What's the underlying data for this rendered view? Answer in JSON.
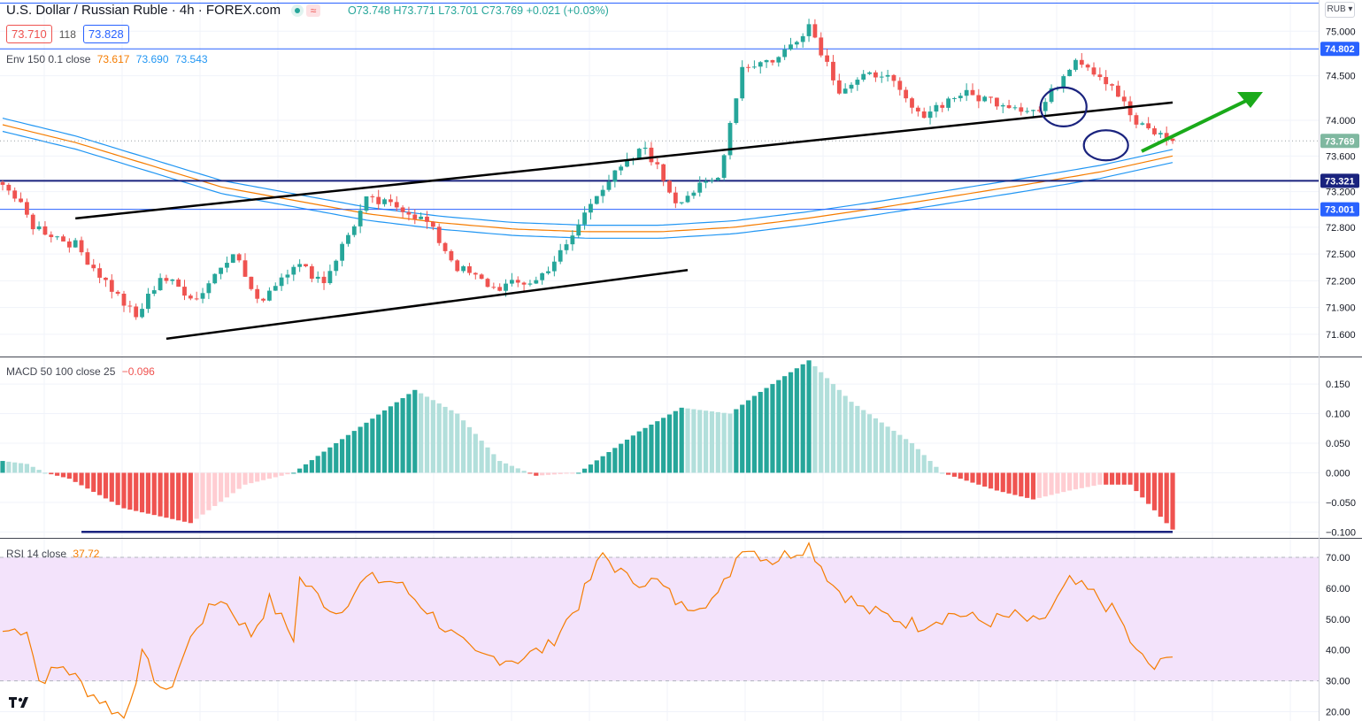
{
  "header": {
    "symbol": "U.S. Dollar / Russian Ruble · 4h · FOREX.com",
    "ohlc": {
      "o": "O73.748",
      "h": "H73.771",
      "l": "L73.701",
      "c": "C73.769",
      "chg": "+0.021 (+0.03%)"
    },
    "bid": "73.710",
    "spread": "118",
    "ask": "73.828",
    "currency": "RUB",
    "status_colors": {
      "live": "#26a69a",
      "wave": "#ef5350"
    }
  },
  "indicators": {
    "env": {
      "label": "Env 150 0.1 close",
      "basis": "73.617",
      "upper": "73.690",
      "lower": "73.543",
      "colors": {
        "basis": "#f57c00",
        "band": "#2196f3"
      }
    },
    "macd": {
      "label": "MACD 50 100 close 25",
      "value": "−0.096"
    },
    "rsi": {
      "label": "RSI 14 close",
      "value": "37.72"
    }
  },
  "chart_data": [
    {
      "type": "candlestick",
      "name": "price",
      "y_ticks": [
        "75.000",
        "74.500",
        "74.000",
        "73.600",
        "73.200",
        "72.800",
        "72.500",
        "72.200",
        "71.900",
        "71.600"
      ],
      "ylim": [
        71.35,
        75.35
      ],
      "price_badges": [
        {
          "value": "74.802",
          "color": "#2962ff",
          "style": "hline"
        },
        {
          "value": "73.769",
          "color": "#7fb8a0",
          "style": "last"
        },
        {
          "value": "73.321",
          "color": "#1a237e",
          "style": "hline"
        },
        {
          "value": "73.001",
          "color": "#2962ff",
          "style": "hline"
        }
      ],
      "anchors": [
        {
          "i": 0,
          "p": 73.33
        },
        {
          "i": 5,
          "p": 72.82
        },
        {
          "i": 12,
          "p": 72.6
        },
        {
          "i": 22,
          "p": 71.78
        },
        {
          "i": 26,
          "p": 72.25
        },
        {
          "i": 32,
          "p": 72.0
        },
        {
          "i": 38,
          "p": 72.55
        },
        {
          "i": 42,
          "p": 71.95
        },
        {
          "i": 48,
          "p": 72.4
        },
        {
          "i": 53,
          "p": 72.2
        },
        {
          "i": 60,
          "p": 73.1
        },
        {
          "i": 66,
          "p": 73.02
        },
        {
          "i": 70,
          "p": 72.85
        },
        {
          "i": 75,
          "p": 72.35
        },
        {
          "i": 81,
          "p": 72.12
        },
        {
          "i": 88,
          "p": 72.2
        },
        {
          "i": 93,
          "p": 72.58
        },
        {
          "i": 98,
          "p": 73.2
        },
        {
          "i": 106,
          "p": 73.7
        },
        {
          "i": 111,
          "p": 73.1
        },
        {
          "i": 118,
          "p": 73.35
        },
        {
          "i": 122,
          "p": 74.6
        },
        {
          "i": 128,
          "p": 74.7
        },
        {
          "i": 133,
          "p": 75.08
        },
        {
          "i": 138,
          "p": 74.35
        },
        {
          "i": 145,
          "p": 74.55
        },
        {
          "i": 151,
          "p": 74.05
        },
        {
          "i": 158,
          "p": 74.3
        },
        {
          "i": 165,
          "p": 74.2
        },
        {
          "i": 171,
          "p": 74.1
        },
        {
          "i": 177,
          "p": 74.72
        },
        {
          "i": 183,
          "p": 74.4
        },
        {
          "i": 187,
          "p": 73.95
        },
        {
          "i": 193,
          "p": 73.769
        }
      ],
      "envelope": {
        "basis": [
          73.95,
          73.75,
          73.5,
          73.25,
          73.1,
          72.95,
          72.85,
          72.78,
          72.75,
          72.75,
          72.8,
          72.9,
          73.02,
          73.15,
          73.28,
          73.42,
          73.6
        ],
        "band_pct": 0.1
      },
      "trendlines": [
        {
          "from": [
            12,
            72.9
          ],
          "to": [
            193,
            74.2
          ]
        },
        {
          "from": [
            27,
            71.55
          ],
          "to": [
            113,
            72.32
          ]
        }
      ]
    },
    {
      "type": "bar",
      "name": "MACD histogram",
      "y_ticks": [
        "0.150",
        "0.100",
        "0.050",
        "0.000",
        "−0.050",
        "−0.100"
      ],
      "ylim": [
        -0.11,
        0.195
      ],
      "anchors": [
        {
          "i": 0,
          "v": 0.02
        },
        {
          "i": 4,
          "v": 0.015
        },
        {
          "i": 7,
          "v": 0.0
        },
        {
          "i": 11,
          "v": -0.01
        },
        {
          "i": 20,
          "v": -0.06
        },
        {
          "i": 31,
          "v": -0.085
        },
        {
          "i": 40,
          "v": -0.02
        },
        {
          "i": 48,
          "v": 0.0
        },
        {
          "i": 55,
          "v": 0.05
        },
        {
          "i": 68,
          "v": 0.14
        },
        {
          "i": 75,
          "v": 0.1
        },
        {
          "i": 82,
          "v": 0.02
        },
        {
          "i": 88,
          "v": -0.005
        },
        {
          "i": 95,
          "v": 0.0
        },
        {
          "i": 105,
          "v": 0.07
        },
        {
          "i": 112,
          "v": 0.11
        },
        {
          "i": 120,
          "v": 0.1
        },
        {
          "i": 124,
          "v": 0.13
        },
        {
          "i": 133,
          "v": 0.19
        },
        {
          "i": 140,
          "v": 0.12
        },
        {
          "i": 150,
          "v": 0.05
        },
        {
          "i": 155,
          "v": 0.0
        },
        {
          "i": 164,
          "v": -0.03
        },
        {
          "i": 170,
          "v": -0.045
        },
        {
          "i": 176,
          "v": -0.03
        },
        {
          "i": 181,
          "v": -0.02
        },
        {
          "i": 186,
          "v": -0.02
        },
        {
          "i": 193,
          "v": -0.096
        }
      ],
      "reference_line": {
        "value": -0.1,
        "from": 13,
        "to": 193,
        "color": "#1a237e"
      }
    },
    {
      "type": "line",
      "name": "RSI",
      "y_ticks": [
        "70.00",
        "60.00",
        "50.00",
        "40.00",
        "30.00",
        "20.00"
      ],
      "ylim": [
        17,
        76
      ],
      "band": [
        30,
        70
      ],
      "anchors": [
        {
          "i": 0,
          "v": 46
        },
        {
          "i": 4,
          "v": 47
        },
        {
          "i": 6,
          "v": 30
        },
        {
          "i": 10,
          "v": 35
        },
        {
          "i": 14,
          "v": 27
        },
        {
          "i": 20,
          "v": 18
        },
        {
          "i": 23,
          "v": 38
        },
        {
          "i": 27,
          "v": 25
        },
        {
          "i": 32,
          "v": 48
        },
        {
          "i": 36,
          "v": 57
        },
        {
          "i": 41,
          "v": 45
        },
        {
          "i": 44,
          "v": 56
        },
        {
          "i": 48,
          "v": 44
        },
        {
          "i": 49,
          "v": 63
        },
        {
          "i": 55,
          "v": 52
        },
        {
          "i": 60,
          "v": 63
        },
        {
          "i": 65,
          "v": 62
        },
        {
          "i": 70,
          "v": 53
        },
        {
          "i": 73,
          "v": 47
        },
        {
          "i": 78,
          "v": 38
        },
        {
          "i": 85,
          "v": 37
        },
        {
          "i": 90,
          "v": 41
        },
        {
          "i": 95,
          "v": 55
        },
        {
          "i": 99,
          "v": 71
        },
        {
          "i": 103,
          "v": 63
        },
        {
          "i": 108,
          "v": 62
        },
        {
          "i": 112,
          "v": 54
        },
        {
          "i": 118,
          "v": 57
        },
        {
          "i": 122,
          "v": 74
        },
        {
          "i": 127,
          "v": 69
        },
        {
          "i": 133,
          "v": 74
        },
        {
          "i": 137,
          "v": 61
        },
        {
          "i": 142,
          "v": 53
        },
        {
          "i": 146,
          "v": 51
        },
        {
          "i": 151,
          "v": 48
        },
        {
          "i": 157,
          "v": 52
        },
        {
          "i": 162,
          "v": 49
        },
        {
          "i": 167,
          "v": 51
        },
        {
          "i": 171,
          "v": 48
        },
        {
          "i": 176,
          "v": 62
        },
        {
          "i": 180,
          "v": 58
        },
        {
          "i": 184,
          "v": 51
        },
        {
          "i": 187,
          "v": 39
        },
        {
          "i": 190,
          "v": 34
        },
        {
          "i": 193,
          "v": 37.72
        }
      ]
    }
  ],
  "annotations": {
    "circles_color": "#1a237e",
    "arrow_color": "#1aaa1a",
    "trendline_color": "#000000"
  }
}
